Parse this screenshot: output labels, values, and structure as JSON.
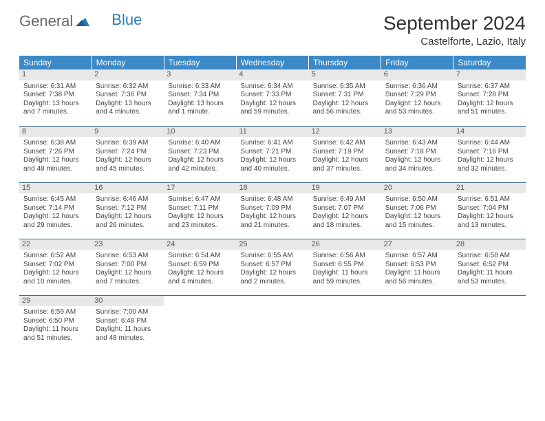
{
  "logo": {
    "general": "General",
    "blue": "Blue"
  },
  "title": "September 2024",
  "location": "Castelforte, Lazio, Italy",
  "colors": {
    "header_bg": "#3b89c7",
    "header_text": "#ffffff",
    "daynum_bg": "#e8e8e8",
    "row_border": "#3b6a93",
    "logo_blue": "#2a7ab9"
  },
  "weekdays": [
    "Sunday",
    "Monday",
    "Tuesday",
    "Wednesday",
    "Thursday",
    "Friday",
    "Saturday"
  ],
  "days": [
    {
      "n": "1",
      "sr": "Sunrise: 6:31 AM",
      "ss": "Sunset: 7:38 PM",
      "dl1": "Daylight: 13 hours",
      "dl2": "and 7 minutes."
    },
    {
      "n": "2",
      "sr": "Sunrise: 6:32 AM",
      "ss": "Sunset: 7:36 PM",
      "dl1": "Daylight: 13 hours",
      "dl2": "and 4 minutes."
    },
    {
      "n": "3",
      "sr": "Sunrise: 6:33 AM",
      "ss": "Sunset: 7:34 PM",
      "dl1": "Daylight: 13 hours",
      "dl2": "and 1 minute."
    },
    {
      "n": "4",
      "sr": "Sunrise: 6:34 AM",
      "ss": "Sunset: 7:33 PM",
      "dl1": "Daylight: 12 hours",
      "dl2": "and 59 minutes."
    },
    {
      "n": "5",
      "sr": "Sunrise: 6:35 AM",
      "ss": "Sunset: 7:31 PM",
      "dl1": "Daylight: 12 hours",
      "dl2": "and 56 minutes."
    },
    {
      "n": "6",
      "sr": "Sunrise: 6:36 AM",
      "ss": "Sunset: 7:29 PM",
      "dl1": "Daylight: 12 hours",
      "dl2": "and 53 minutes."
    },
    {
      "n": "7",
      "sr": "Sunrise: 6:37 AM",
      "ss": "Sunset: 7:28 PM",
      "dl1": "Daylight: 12 hours",
      "dl2": "and 51 minutes."
    },
    {
      "n": "8",
      "sr": "Sunrise: 6:38 AM",
      "ss": "Sunset: 7:26 PM",
      "dl1": "Daylight: 12 hours",
      "dl2": "and 48 minutes."
    },
    {
      "n": "9",
      "sr": "Sunrise: 6:39 AM",
      "ss": "Sunset: 7:24 PM",
      "dl1": "Daylight: 12 hours",
      "dl2": "and 45 minutes."
    },
    {
      "n": "10",
      "sr": "Sunrise: 6:40 AM",
      "ss": "Sunset: 7:23 PM",
      "dl1": "Daylight: 12 hours",
      "dl2": "and 42 minutes."
    },
    {
      "n": "11",
      "sr": "Sunrise: 6:41 AM",
      "ss": "Sunset: 7:21 PM",
      "dl1": "Daylight: 12 hours",
      "dl2": "and 40 minutes."
    },
    {
      "n": "12",
      "sr": "Sunrise: 6:42 AM",
      "ss": "Sunset: 7:19 PM",
      "dl1": "Daylight: 12 hours",
      "dl2": "and 37 minutes."
    },
    {
      "n": "13",
      "sr": "Sunrise: 6:43 AM",
      "ss": "Sunset: 7:18 PM",
      "dl1": "Daylight: 12 hours",
      "dl2": "and 34 minutes."
    },
    {
      "n": "14",
      "sr": "Sunrise: 6:44 AM",
      "ss": "Sunset: 7:16 PM",
      "dl1": "Daylight: 12 hours",
      "dl2": "and 32 minutes."
    },
    {
      "n": "15",
      "sr": "Sunrise: 6:45 AM",
      "ss": "Sunset: 7:14 PM",
      "dl1": "Daylight: 12 hours",
      "dl2": "and 29 minutes."
    },
    {
      "n": "16",
      "sr": "Sunrise: 6:46 AM",
      "ss": "Sunset: 7:12 PM",
      "dl1": "Daylight: 12 hours",
      "dl2": "and 26 minutes."
    },
    {
      "n": "17",
      "sr": "Sunrise: 6:47 AM",
      "ss": "Sunset: 7:11 PM",
      "dl1": "Daylight: 12 hours",
      "dl2": "and 23 minutes."
    },
    {
      "n": "18",
      "sr": "Sunrise: 6:48 AM",
      "ss": "Sunset: 7:09 PM",
      "dl1": "Daylight: 12 hours",
      "dl2": "and 21 minutes."
    },
    {
      "n": "19",
      "sr": "Sunrise: 6:49 AM",
      "ss": "Sunset: 7:07 PM",
      "dl1": "Daylight: 12 hours",
      "dl2": "and 18 minutes."
    },
    {
      "n": "20",
      "sr": "Sunrise: 6:50 AM",
      "ss": "Sunset: 7:06 PM",
      "dl1": "Daylight: 12 hours",
      "dl2": "and 15 minutes."
    },
    {
      "n": "21",
      "sr": "Sunrise: 6:51 AM",
      "ss": "Sunset: 7:04 PM",
      "dl1": "Daylight: 12 hours",
      "dl2": "and 13 minutes."
    },
    {
      "n": "22",
      "sr": "Sunrise: 6:52 AM",
      "ss": "Sunset: 7:02 PM",
      "dl1": "Daylight: 12 hours",
      "dl2": "and 10 minutes."
    },
    {
      "n": "23",
      "sr": "Sunrise: 6:53 AM",
      "ss": "Sunset: 7:00 PM",
      "dl1": "Daylight: 12 hours",
      "dl2": "and 7 minutes."
    },
    {
      "n": "24",
      "sr": "Sunrise: 6:54 AM",
      "ss": "Sunset: 6:59 PM",
      "dl1": "Daylight: 12 hours",
      "dl2": "and 4 minutes."
    },
    {
      "n": "25",
      "sr": "Sunrise: 6:55 AM",
      "ss": "Sunset: 6:57 PM",
      "dl1": "Daylight: 12 hours",
      "dl2": "and 2 minutes."
    },
    {
      "n": "26",
      "sr": "Sunrise: 6:56 AM",
      "ss": "Sunset: 6:55 PM",
      "dl1": "Daylight: 11 hours",
      "dl2": "and 59 minutes."
    },
    {
      "n": "27",
      "sr": "Sunrise: 6:57 AM",
      "ss": "Sunset: 6:53 PM",
      "dl1": "Daylight: 11 hours",
      "dl2": "and 56 minutes."
    },
    {
      "n": "28",
      "sr": "Sunrise: 6:58 AM",
      "ss": "Sunset: 6:52 PM",
      "dl1": "Daylight: 11 hours",
      "dl2": "and 53 minutes."
    },
    {
      "n": "29",
      "sr": "Sunrise: 6:59 AM",
      "ss": "Sunset: 6:50 PM",
      "dl1": "Daylight: 11 hours",
      "dl2": "and 51 minutes."
    },
    {
      "n": "30",
      "sr": "Sunrise: 7:00 AM",
      "ss": "Sunset: 6:48 PM",
      "dl1": "Daylight: 11 hours",
      "dl2": "and 48 minutes."
    }
  ]
}
